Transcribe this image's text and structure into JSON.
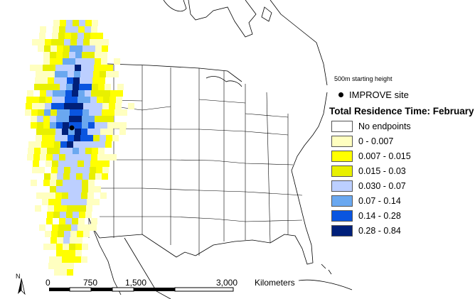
{
  "map": {
    "legend": {
      "start_height": "500m starting height",
      "site_label": "IMPROVE site",
      "title": "Total Residence Time: February",
      "items": [
        {
          "label": "No endpoints",
          "color": "#ffffff"
        },
        {
          "label": "0 - 0.007",
          "color": "#ffffc0"
        },
        {
          "label": "0.007 - 0.015",
          "color": "#ffff00"
        },
        {
          "label": "0.015 - 0.03",
          "color": "#e8f000"
        },
        {
          "label": "0.030 - 0.07",
          "color": "#bccfff"
        },
        {
          "label": "0.07 - 0.14",
          "color": "#6aa8f0"
        },
        {
          "label": "0.14 - 0.28",
          "color": "#0a55e0"
        },
        {
          "label": "0.28 - 0.84",
          "color": "#00207a"
        }
      ]
    },
    "scale_bar": {
      "ticks": [
        "0",
        "750",
        "1,500",
        "3,000"
      ],
      "unit": "Kilometers"
    },
    "north_arrow": "N",
    "colors": {
      "land": "#ffffff",
      "outline": "#000000",
      "internal_borders": "#000000"
    }
  }
}
